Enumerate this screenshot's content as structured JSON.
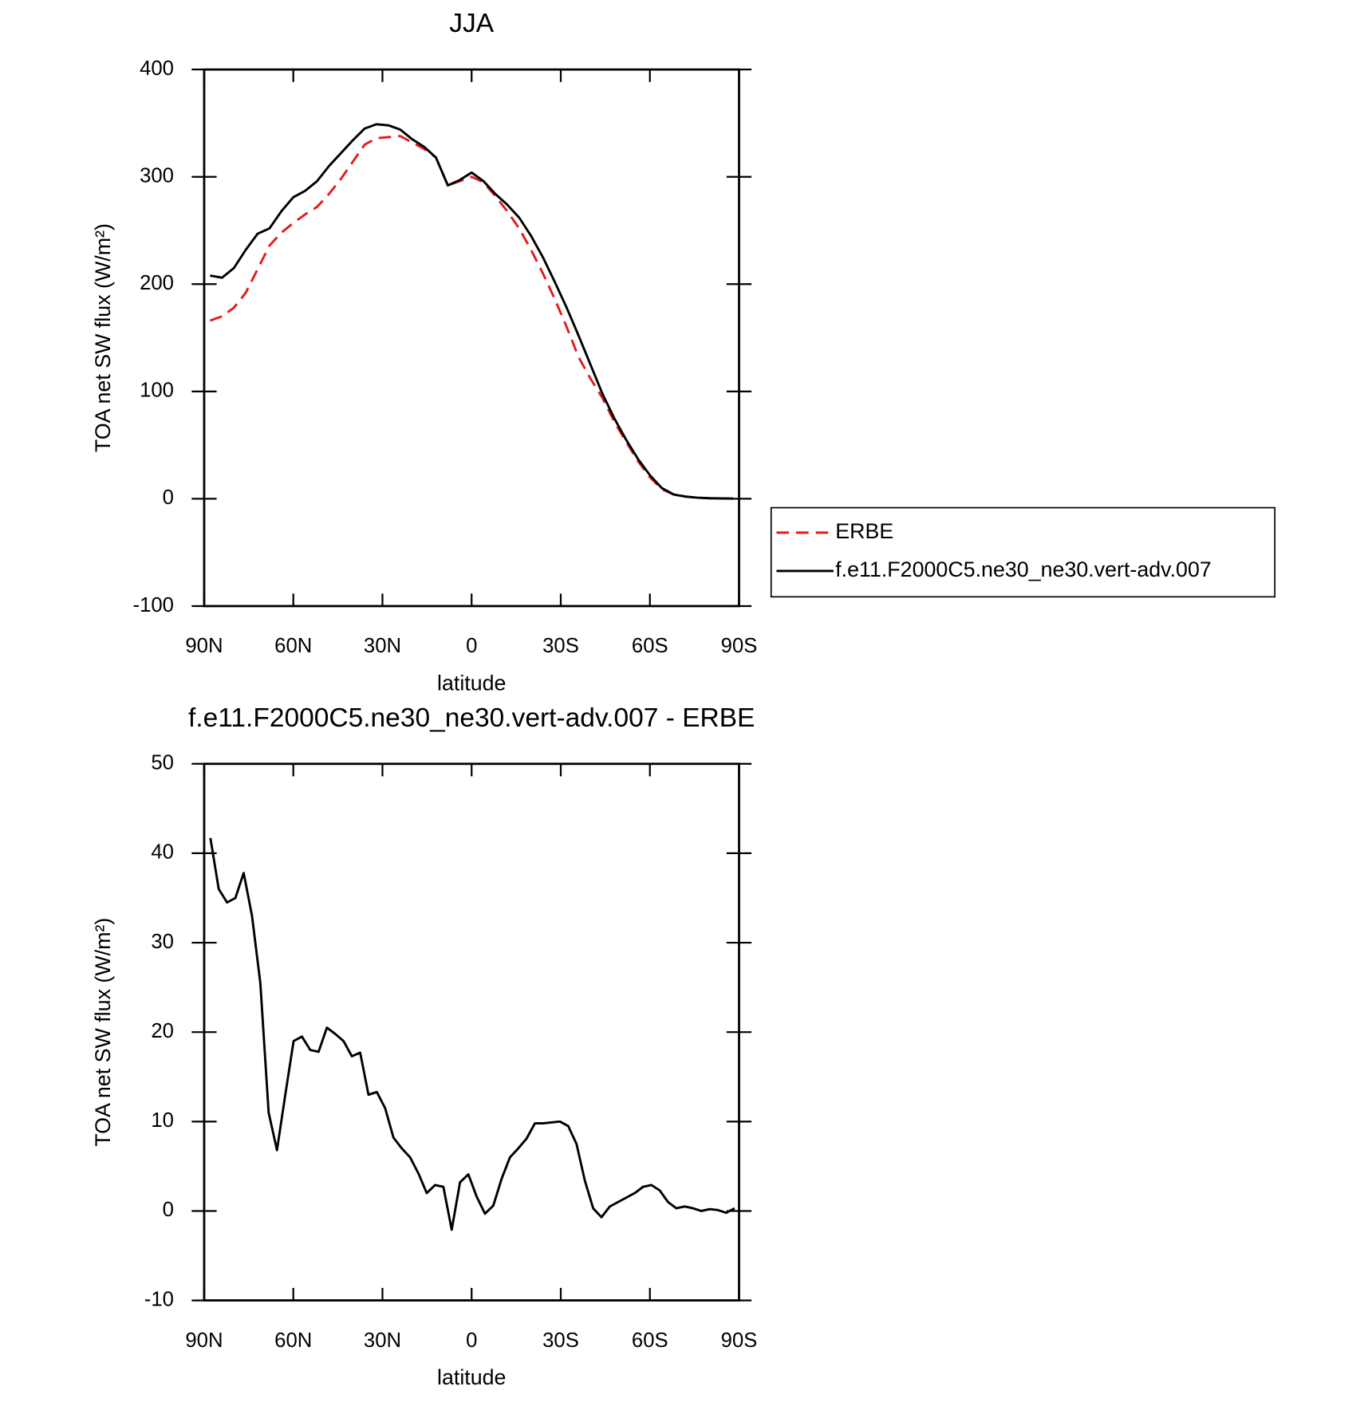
{
  "chart_data": [
    {
      "type": "line",
      "title": "JJA",
      "xlabel": "latitude",
      "ylabel": "TOA net SW flux (W/m²)",
      "xlim": [
        90,
        -90
      ],
      "xticks": [
        {
          "value": 90,
          "label": "90N"
        },
        {
          "value": 60,
          "label": "60N"
        },
        {
          "value": 30,
          "label": "30N"
        },
        0,
        {
          "value": -30,
          "label": "30S"
        },
        {
          "value": -60,
          "label": "60S"
        },
        {
          "value": -90,
          "label": "90S"
        }
      ],
      "ylim": [
        -100,
        400
      ],
      "yticks": [
        -100,
        0,
        100,
        200,
        300,
        400
      ],
      "legend": "right",
      "x": [
        88,
        84,
        80,
        76,
        72,
        68,
        64,
        60,
        56,
        52,
        48,
        44,
        40,
        36,
        32,
        28,
        24,
        20,
        16,
        12,
        8,
        4,
        0,
        -4,
        -8,
        -12,
        -16,
        -20,
        -24,
        -28,
        -32,
        -36,
        -40,
        -44,
        -48,
        -52,
        -56,
        -60,
        -64,
        -68,
        -72,
        -76,
        -80,
        -84,
        -88
      ],
      "series": [
        {
          "name": "ERBE",
          "color": "#e41a1c",
          "dash": true,
          "values": [
            166,
            170,
            178,
            192,
            214,
            236,
            248,
            257,
            265,
            272,
            284,
            298,
            314,
            330,
            336,
            337,
            338,
            332,
            326,
            318,
            292,
            296,
            300,
            295,
            282,
            268,
            252,
            232,
            210,
            186,
            160,
            132,
            112,
            94,
            72,
            53,
            35,
            20,
            9,
            4,
            2,
            1,
            0.5,
            0.3,
            0.2
          ]
        },
        {
          "name": "f.e11.F2000C5.ne30_ne30.vert-adv.007",
          "color": "#000000",
          "dash": false,
          "values": [
            208,
            206,
            215,
            232,
            247,
            252,
            268,
            281,
            287,
            296,
            310,
            322,
            334,
            345,
            349,
            348,
            344,
            335,
            328,
            318,
            292,
            297,
            304,
            296,
            284,
            274,
            262,
            245,
            225,
            202,
            178,
            152,
            125,
            98,
            75,
            55,
            37,
            22,
            10,
            4,
            2,
            1,
            0.5,
            0.3,
            0.2
          ]
        }
      ]
    },
    {
      "type": "line",
      "title": "f.e11.F2000C5.ne30_ne30.vert-adv.007 - ERBE",
      "xlabel": "latitude",
      "ylabel": "TOA net SW flux (W/m²)",
      "xlim": [
        90,
        -90
      ],
      "xticks": [
        {
          "value": 90,
          "label": "90N"
        },
        {
          "value": 60,
          "label": "60N"
        },
        {
          "value": 30,
          "label": "30N"
        },
        0,
        {
          "value": -30,
          "label": "30S"
        },
        {
          "value": -60,
          "label": "60S"
        },
        {
          "value": -90,
          "label": "90S"
        }
      ],
      "ylim": [
        -10,
        50
      ],
      "yticks": [
        -10,
        0,
        10,
        20,
        30,
        40,
        50
      ],
      "x": [
        87.9,
        85.1,
        82.3,
        79.5,
        76.7,
        73.9,
        71.1,
        68.3,
        65.5,
        62.7,
        59.9,
        57.1,
        54.3,
        51.5,
        48.7,
        45.9,
        43.1,
        40.3,
        37.5,
        34.7,
        31.9,
        29.1,
        26.3,
        23.5,
        20.7,
        17.9,
        15.1,
        12.3,
        9.5,
        6.7,
        3.9,
        1.1,
        -1.7,
        -4.5,
        -7.3,
        -10.1,
        -12.9,
        -15.7,
        -18.5,
        -21.3,
        -24.1,
        -26.9,
        -29.7,
        -32.5,
        -35.3,
        -38.1,
        -40.9,
        -43.7,
        -46.5,
        -49.3,
        -52.1,
        -54.9,
        -57.7,
        -60.5,
        -63.3,
        -66.1,
        -68.9,
        -71.7,
        -74.5,
        -77.3,
        -80.1,
        -82.9,
        -85.7,
        -88.5
      ],
      "series": [
        {
          "color": "#000000",
          "dash": false,
          "values": [
            41.7,
            36,
            34.5,
            35,
            37.8,
            33,
            25.5,
            11,
            6.8,
            13,
            19,
            19.5,
            18,
            17.8,
            20.5,
            19.8,
            19,
            17.3,
            17.7,
            13,
            13.3,
            11.5,
            8.2,
            7,
            6,
            4.2,
            2,
            2.9,
            2.7,
            -2.1,
            3.2,
            4.1,
            1.6,
            -0.3,
            0.6,
            3.6,
            6,
            7,
            8.1,
            9.8,
            9.8,
            9.9,
            10,
            9.5,
            7.5,
            3.4,
            0.3,
            -0.7,
            0.5,
            1,
            1.5,
            2,
            2.7,
            2.9,
            2.3,
            1,
            0.3,
            0.5,
            0.3,
            0,
            0.2,
            0.1,
            -0.2,
            0.3
          ]
        }
      ]
    }
  ]
}
